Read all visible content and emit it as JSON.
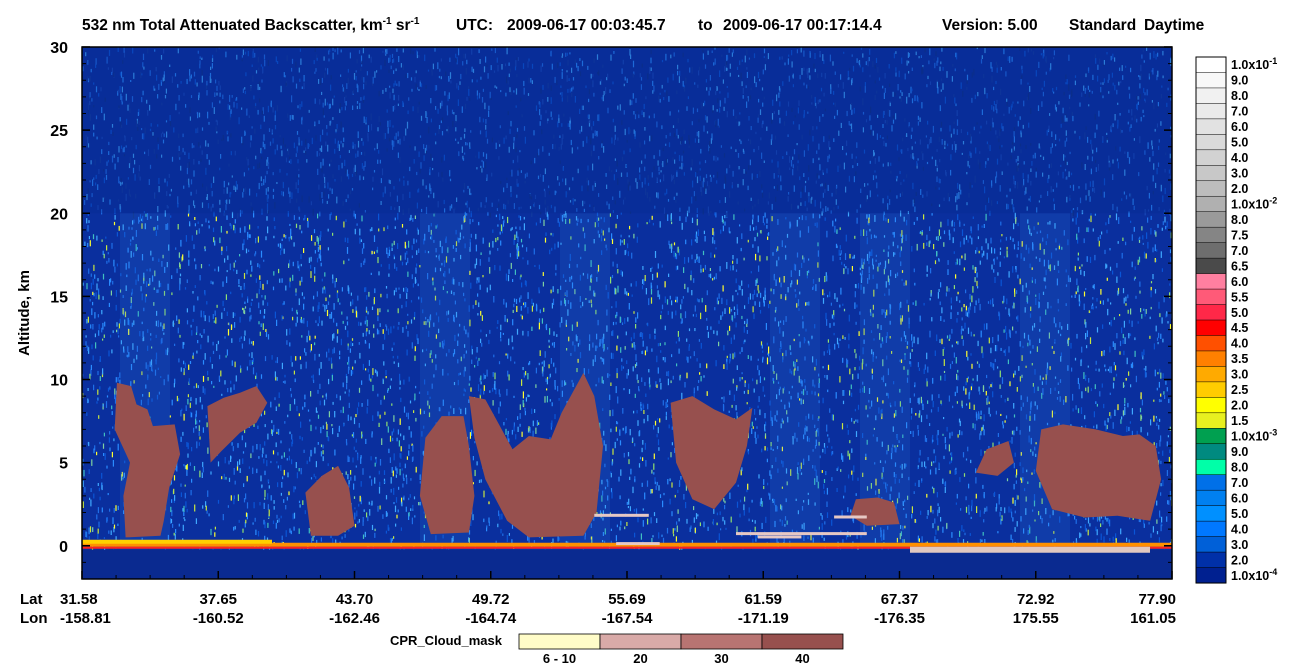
{
  "chart_data": {
    "type": "heatmap",
    "title": "532 nm Total Attenuated Backscatter, km",
    "title_unit_a": "-1",
    "title_mid": " sr",
    "title_unit_b": "-1",
    "utc_label": "UTC:",
    "utc_start": "2009-06-17 00:03:45.7",
    "utc_to": "to",
    "utc_end": "2009-06-17 00:17:14.4",
    "version": "Version: 5.00",
    "product": "Standard",
    "daytime": "Daytime",
    "ylabel": "Altitude, km",
    "ylim": [
      -2,
      30
    ],
    "yticks": [
      "30",
      "25",
      "20",
      "15",
      "10",
      "5",
      "0"
    ],
    "ytick_values": [
      30,
      25,
      20,
      15,
      10,
      5,
      0
    ],
    "lat_label": "Lat",
    "lon_label": "Lon",
    "lat_ticks": [
      "31.58",
      "37.65",
      "43.70",
      "49.72",
      "55.69",
      "61.59",
      "67.37",
      "72.92",
      "77.90"
    ],
    "lon_ticks": [
      "-158.81",
      "-160.52",
      "-162.46",
      "-164.74",
      "-167.54",
      "-171.19",
      "-176.35",
      "175.55",
      "161.05"
    ],
    "colorbar": {
      "labels": [
        "1.0x10",
        "9.0",
        "8.0",
        "7.0",
        "6.0",
        "5.0",
        "4.0",
        "3.0",
        "2.0",
        "1.0x10",
        "8.0",
        "7.5",
        "7.0",
        "6.5",
        "6.0",
        "5.5",
        "5.0",
        "4.5",
        "4.0",
        "3.5",
        "3.0",
        "2.5",
        "2.0",
        "1.5",
        "1.0x10",
        "9.0",
        "8.0",
        "7.0",
        "6.0",
        "5.0",
        "4.0",
        "3.0",
        "2.0",
        "1.0x10"
      ],
      "exponents": [
        "-1",
        "",
        "",
        "",
        "",
        "",
        "",
        "",
        "",
        "-2",
        "",
        "",
        "",
        "",
        "",
        "",
        "",
        "",
        "",
        "",
        "",
        "",
        "",
        "",
        "-3",
        "",
        "",
        "",
        "",
        "",
        "",
        "",
        "",
        "-4"
      ],
      "colors": [
        "#ffffff",
        "#f8f8f8",
        "#f1f1f1",
        "#eaeaea",
        "#e2e2e2",
        "#dadada",
        "#d2d2d2",
        "#c8c8c8",
        "#bdbdbd",
        "#b0b0b0",
        "#9a9a9a",
        "#858585",
        "#6e6e6e",
        "#4a4a4a",
        "#ff7fa0",
        "#ff5a78",
        "#ff2848",
        "#ff0000",
        "#ff5000",
        "#ff8000",
        "#ffaa00",
        "#ffcc00",
        "#ffff00",
        "#e8f020",
        "#00a050",
        "#008a80",
        "#00ffa8",
        "#0070e8",
        "#0080f0",
        "#0090ff",
        "#0078ff",
        "#0060d8",
        "#0030a8",
        "#002090"
      ]
    },
    "cpr_legend": {
      "title": "CPR_Cloud_mask",
      "labels": [
        "6 - 10",
        "20",
        "30",
        "40"
      ],
      "colors": [
        "#fffcc8",
        "#d9aaa8",
        "#b87472",
        "#97504e"
      ]
    },
    "cloud_color": "#97504e",
    "background_color": "#0a2f9e"
  }
}
